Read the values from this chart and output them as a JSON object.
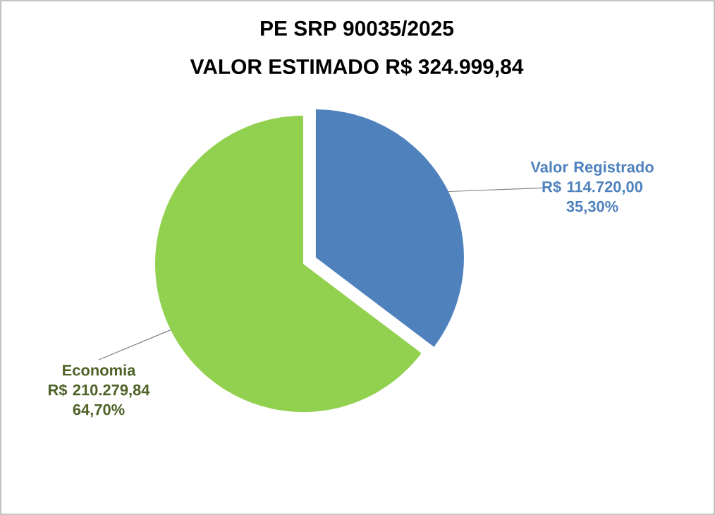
{
  "chart_data": {
    "type": "pie",
    "title": "PE SRP 90035/2025",
    "subtitle": "VALOR ESTIMADO R$ 324.999,84",
    "categories": [
      "Valor Registrado",
      "Economia"
    ],
    "values": [
      35.3,
      64.7
    ],
    "value_labels": [
      "R$ 114.720,00 35,30%",
      "R$ 210.279,84 64,70%"
    ],
    "colors": [
      "#4f81bd",
      "#92d050"
    ]
  }
}
